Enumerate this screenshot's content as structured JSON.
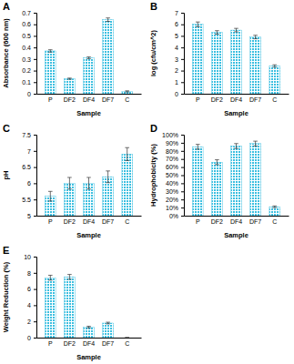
{
  "chart_data": [
    {
      "type": "bar",
      "title": "A",
      "x_label": "Sample",
      "y_label": "Absorbance (600 nm)",
      "categories": [
        "P",
        "DF2",
        "DF4",
        "DF7",
        "C"
      ],
      "values": [
        0.37,
        0.13,
        0.31,
        0.64,
        0.02
      ],
      "errors": [
        0.01,
        0.005,
        0.008,
        0.015,
        0.005
      ],
      "color": "#3cbfe0",
      "ylim": [
        0,
        0.7
      ],
      "yticks": [
        0,
        0.1,
        0.2,
        0.3,
        0.4,
        0.5,
        0.6,
        0.7
      ]
    },
    {
      "type": "bar",
      "title": "B",
      "x_label": "Sample",
      "y_label": "log (cfu/cm^2)",
      "categories": [
        "P",
        "DF2",
        "DF4",
        "DF7",
        "C"
      ],
      "values": [
        6.0,
        5.3,
        5.5,
        4.9,
        2.4
      ],
      "errors": [
        0.2,
        0.15,
        0.15,
        0.15,
        0.1
      ],
      "color": "#3cbfe0",
      "ylim": [
        0,
        7
      ],
      "yticks": [
        0,
        1,
        2,
        3,
        4,
        5,
        6,
        7
      ]
    },
    {
      "type": "bar",
      "title": "C",
      "x_label": "Sample",
      "y_label": "pH",
      "categories": [
        "P",
        "DF2",
        "DF4",
        "DF7",
        "C"
      ],
      "values": [
        5.6,
        6.0,
        6.0,
        6.2,
        6.9
      ],
      "errors": [
        0.15,
        0.18,
        0.18,
        0.18,
        0.2
      ],
      "color": "#3cbfe0",
      "ylim": [
        5,
        7.5
      ],
      "yticks": [
        5,
        5.5,
        6,
        6.5,
        7,
        7.5
      ]
    },
    {
      "type": "bar",
      "title": "D",
      "x_label": "Sample",
      "y_label": "Hydrophobicity (%)",
      "categories": [
        "P",
        "DF2",
        "DF4",
        "DF7",
        "C"
      ],
      "values": [
        85,
        66,
        86,
        89,
        11
      ],
      "errors": [
        3,
        3,
        3,
        3,
        1
      ],
      "color": "#3cbfe0",
      "ylim": [
        0,
        100
      ],
      "yticks": [
        {
          "value": 0,
          "label": "0%"
        },
        {
          "value": 10,
          "label": "10%"
        },
        {
          "value": 20,
          "label": "20%"
        },
        {
          "value": 30,
          "label": "30%"
        },
        {
          "value": 40,
          "label": "40%"
        },
        {
          "value": 50,
          "label": "50%"
        },
        {
          "value": 60,
          "label": "60%"
        },
        {
          "value": 70,
          "label": "70%"
        },
        {
          "value": 80,
          "label": "80%"
        },
        {
          "value": 90,
          "label": "90%"
        },
        {
          "value": 100,
          "label": "100%"
        }
      ]
    },
    {
      "type": "bar",
      "title": "E",
      "x_label": "Sample",
      "y_label": "Weight Reduction (%)",
      "categories": [
        "P",
        "DF2",
        "DF4",
        "DF7",
        "C"
      ],
      "values": [
        7.4,
        7.5,
        1.3,
        1.8,
        0
      ],
      "errors": [
        0.3,
        0.3,
        0.1,
        0.1,
        0
      ],
      "color": "#3cbfe0",
      "ylim": [
        0,
        10
      ],
      "yticks": [
        0,
        2,
        4,
        6,
        8,
        10
      ]
    }
  ]
}
